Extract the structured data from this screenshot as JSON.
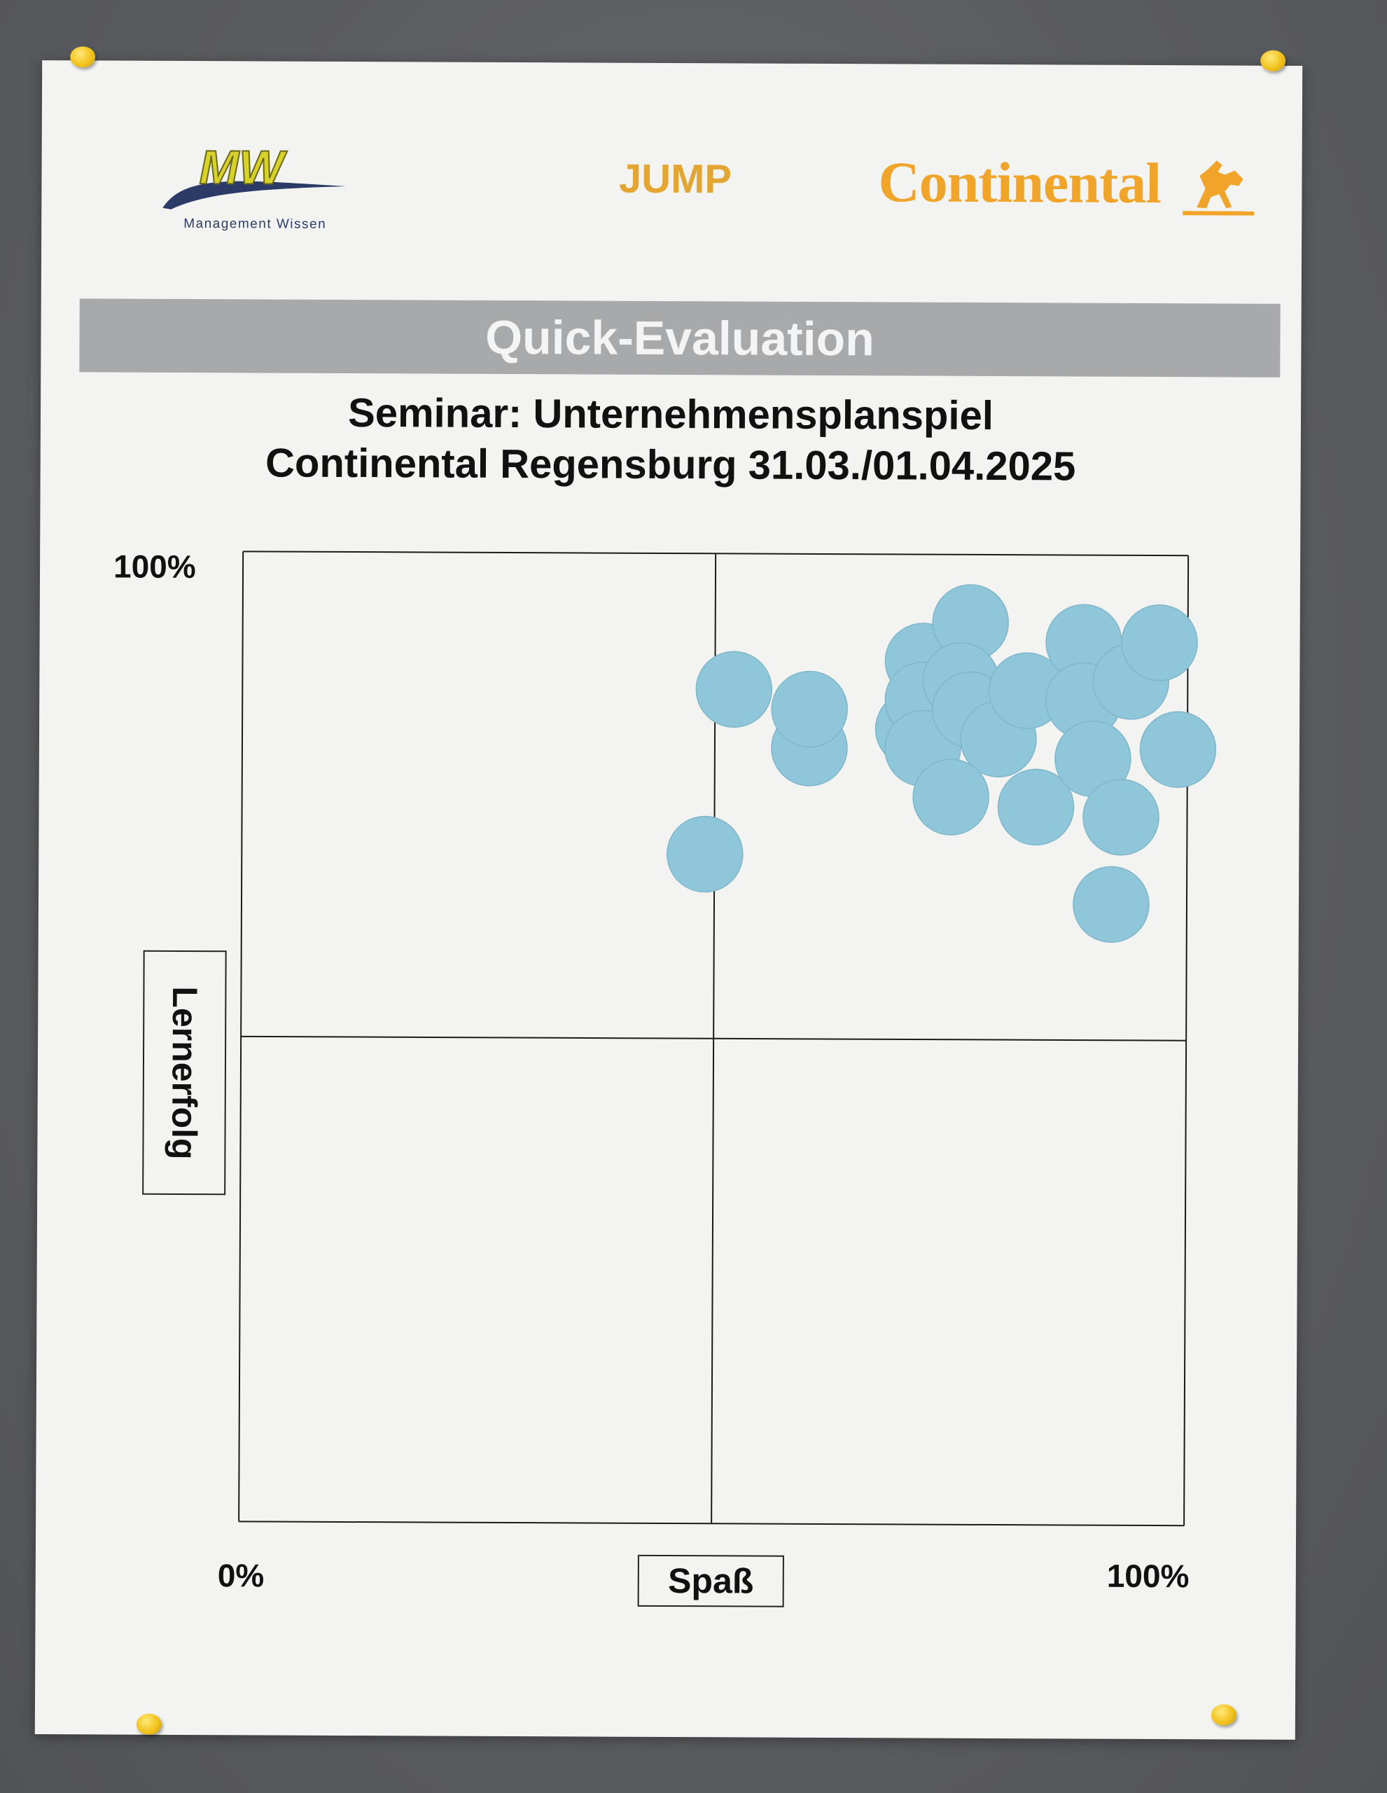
{
  "header": {
    "logo_mw_text": "MW",
    "logo_mw_caption": "Management Wissen",
    "jump": "JUMP",
    "continental": "Continental"
  },
  "banner": {
    "title": "Quick-Evaluation"
  },
  "subtitle": {
    "line1": "Seminar: Unternehmensplanspiel",
    "line2": "Continental Regensburg 31.03./01.04.2025"
  },
  "colors": {
    "dot": "#8fc6d9",
    "banner": "#a8a9ab",
    "accent_orange": "#f0a52a",
    "logo_yellow": "#d7d12a",
    "logo_navy": "#2b3a67"
  },
  "chart_data": {
    "type": "scatter",
    "xlabel": "Spaß",
    "ylabel": "Lernerfolg",
    "x_tick_labels": [
      "0%",
      "100%"
    ],
    "y_tick_labels": [
      "0%",
      "100%"
    ],
    "xlim": [
      0,
      100
    ],
    "ylim": [
      0,
      100
    ],
    "quadrant_lines": {
      "x": 50,
      "y": 50
    },
    "points": [
      {
        "x": 52,
        "y": 86
      },
      {
        "x": 60,
        "y": 80
      },
      {
        "x": 60,
        "y": 84
      },
      {
        "x": 71,
        "y": 82
      },
      {
        "x": 72,
        "y": 89
      },
      {
        "x": 72,
        "y": 85
      },
      {
        "x": 72,
        "y": 80
      },
      {
        "x": 77,
        "y": 93
      },
      {
        "x": 76,
        "y": 87
      },
      {
        "x": 77,
        "y": 84
      },
      {
        "x": 80,
        "y": 81
      },
      {
        "x": 83,
        "y": 86
      },
      {
        "x": 75,
        "y": 75
      },
      {
        "x": 84,
        "y": 74
      },
      {
        "x": 89,
        "y": 91
      },
      {
        "x": 89,
        "y": 85
      },
      {
        "x": 90,
        "y": 79
      },
      {
        "x": 94,
        "y": 87
      },
      {
        "x": 97,
        "y": 91
      },
      {
        "x": 99,
        "y": 80
      },
      {
        "x": 93,
        "y": 73
      },
      {
        "x": 92,
        "y": 64
      },
      {
        "x": 49,
        "y": 69
      }
    ]
  }
}
